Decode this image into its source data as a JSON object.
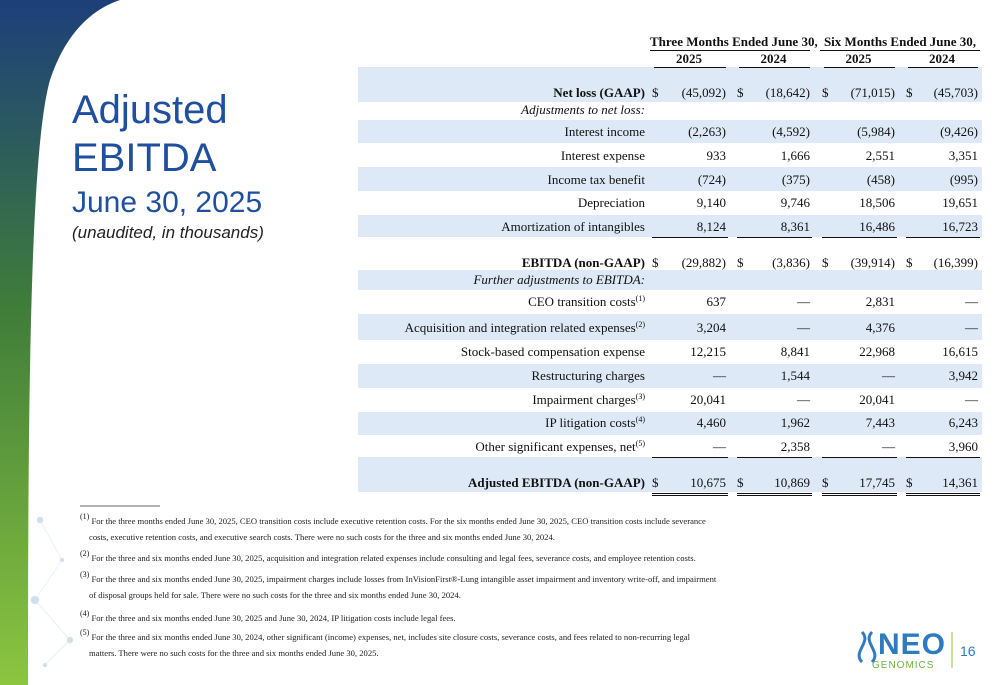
{
  "title_lines": [
    "Adjusted",
    "EBITDA"
  ],
  "subtitle": "June 30, 2025",
  "note": "(unaudited, in thousands)",
  "table": {
    "group_headers": [
      "Three Months Ended June 30,",
      "Six Months Ended June 30,"
    ],
    "years": [
      "2025",
      "2024",
      "2025",
      "2024"
    ],
    "currency_symbol": "$",
    "rows": [
      {
        "label": "Net loss (GAAP)",
        "kind": "total",
        "currency": true,
        "values": [
          "(45,092)",
          "(18,642)",
          "(71,015)",
          "(45,703)"
        ]
      },
      {
        "label": "Adjustments to net loss:",
        "kind": "section"
      },
      {
        "label": "Interest income",
        "kind": "line",
        "values": [
          "(2,263)",
          "(4,592)",
          "(5,984)",
          "(9,426)"
        ]
      },
      {
        "label": "Interest expense",
        "kind": "line",
        "values": [
          "933",
          "1,666",
          "2,551",
          "3,351"
        ]
      },
      {
        "label": "Income tax benefit",
        "kind": "line",
        "values": [
          "(724)",
          "(375)",
          "(458)",
          "(995)"
        ]
      },
      {
        "label": "Depreciation",
        "kind": "line",
        "values": [
          "9,140",
          "9,746",
          "18,506",
          "19,651"
        ]
      },
      {
        "label": "Amortization of intangibles",
        "kind": "line",
        "rule": "single",
        "values": [
          "8,124",
          "8,361",
          "16,486",
          "16,723"
        ]
      },
      {
        "label": "EBITDA (non-GAAP)",
        "kind": "total",
        "currency": true,
        "values": [
          "(29,882)",
          "(3,836)",
          "(39,914)",
          "(16,399)"
        ]
      },
      {
        "label": "Further adjustments to EBITDA:",
        "kind": "section"
      },
      {
        "label": "CEO transition costs",
        "note_ref": "(1)",
        "kind": "line",
        "values": [
          "637",
          "—",
          "2,831",
          "—"
        ]
      },
      {
        "label": "Acquisition and integration related expenses",
        "note_ref": "(2)",
        "kind": "line",
        "values": [
          "3,204",
          "—",
          "4,376",
          "—"
        ]
      },
      {
        "label": "Stock-based compensation expense",
        "kind": "line",
        "values": [
          "12,215",
          "8,841",
          "22,968",
          "16,615"
        ]
      },
      {
        "label": "Restructuring charges",
        "kind": "line",
        "values": [
          "—",
          "1,544",
          "—",
          "3,942"
        ]
      },
      {
        "label": "Impairment charges",
        "note_ref": "(3)",
        "kind": "line",
        "values": [
          "20,041",
          "—",
          "20,041",
          "—"
        ]
      },
      {
        "label": "IP litigation costs",
        "note_ref": "(4)",
        "kind": "line",
        "values": [
          "4,460",
          "1,962",
          "7,443",
          "6,243"
        ]
      },
      {
        "label": "Other significant expenses, net",
        "note_ref": "(5)",
        "kind": "line",
        "rule": "single",
        "values": [
          "—",
          "2,358",
          "—",
          "3,960"
        ]
      },
      {
        "label": "Adjusted EBITDA (non-GAAP)",
        "kind": "total",
        "currency": true,
        "rule": "double",
        "values": [
          "10,675",
          "10,869",
          "17,745",
          "14,361"
        ]
      }
    ]
  },
  "footnotes": [
    {
      "marker": "(1)",
      "text": "For the three months ended June 30, 2025, CEO transition costs include executive retention costs. For the six months ended June 30, 2025, CEO transition costs include severance costs, executive retention costs, and executive search costs. There were no such costs for the three and six months ended June 30, 2024."
    },
    {
      "marker": "(2)",
      "text": "For the three and six months ended June 30, 2025, acquisition and integration related expenses include consulting and legal fees, severance costs, and employee retention costs."
    },
    {
      "marker": "(3)",
      "text": "For the three and six months ended June 30, 2025, impairment charges include losses from InVisionFirst®-Lung intangible asset impairment and inventory write-off, and impairment of disposal groups held for sale. There were no such costs for the three and six months ended June 30, 2024."
    },
    {
      "marker": "(4)",
      "text": "For the three and six months ended June 30, 2025 and June 30, 2024, IP litigation costs include legal fees."
    },
    {
      "marker": "(5)",
      "text": "For the three and six months ended June 30, 2024, other significant (income) expenses, net, includes site closure costs, severance costs, and fees related to non-recurring legal matters. There were no such costs for the three and six months ended June 30, 2025."
    }
  ],
  "logo": {
    "name": "NEO",
    "sub": "GENOMICS"
  },
  "page_number": "16"
}
